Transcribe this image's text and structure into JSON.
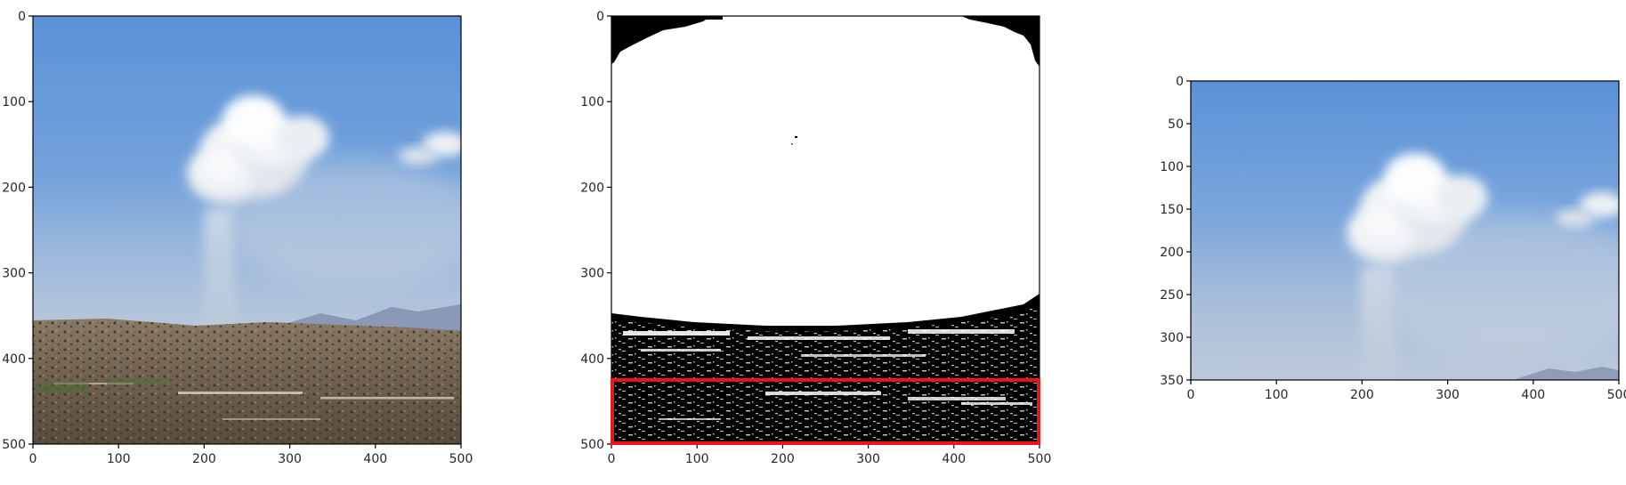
{
  "chart_data": [
    {
      "type": "image",
      "image_content": "landscape photo: blue sky, white cumulus cloud above a smoke column, hazy mountains, brown hillside with scrub",
      "xlim": [
        0,
        500
      ],
      "ylim": [
        500,
        0
      ],
      "xticks": [
        "0",
        "100",
        "200",
        "300",
        "400",
        "500"
      ],
      "yticks": [
        "0",
        "100",
        "200",
        "300",
        "400",
        "500"
      ],
      "colors": {
        "sky_top": "#5b93d8",
        "sky_bottom": "#8fb2d8",
        "cloud": "#f4f5f7",
        "hills": "#6e6152"
      }
    },
    {
      "type": "image",
      "image_content": "binary mask: white sky region, black ground region with white speckles",
      "xlim": [
        0,
        500
      ],
      "ylim": [
        500,
        0
      ],
      "xticks": [
        "0",
        "100",
        "200",
        "300",
        "400",
        "500"
      ],
      "yticks": [
        "0",
        "100",
        "200",
        "300",
        "400",
        "500"
      ],
      "annotation": {
        "shape": "rectangle",
        "color": "#e8161b",
        "x": [
          0,
          500
        ],
        "y": [
          425,
          500
        ]
      },
      "colors": {
        "mask_white": "#ffffff",
        "mask_black": "#000000"
      }
    },
    {
      "type": "image",
      "image_content": "cropped photo: sky, cloud and smoke region of the first image",
      "xlim": [
        0,
        500
      ],
      "ylim": [
        350,
        0
      ],
      "xticks": [
        "0",
        "100",
        "200",
        "300",
        "400",
        "500"
      ],
      "yticks": [
        "0",
        "50",
        "100",
        "150",
        "200",
        "250",
        "300",
        "350"
      ],
      "colors": {
        "sky_top": "#5b93d8",
        "sky_bottom": "#9ab8d8",
        "cloud": "#f4f5f7"
      }
    }
  ]
}
